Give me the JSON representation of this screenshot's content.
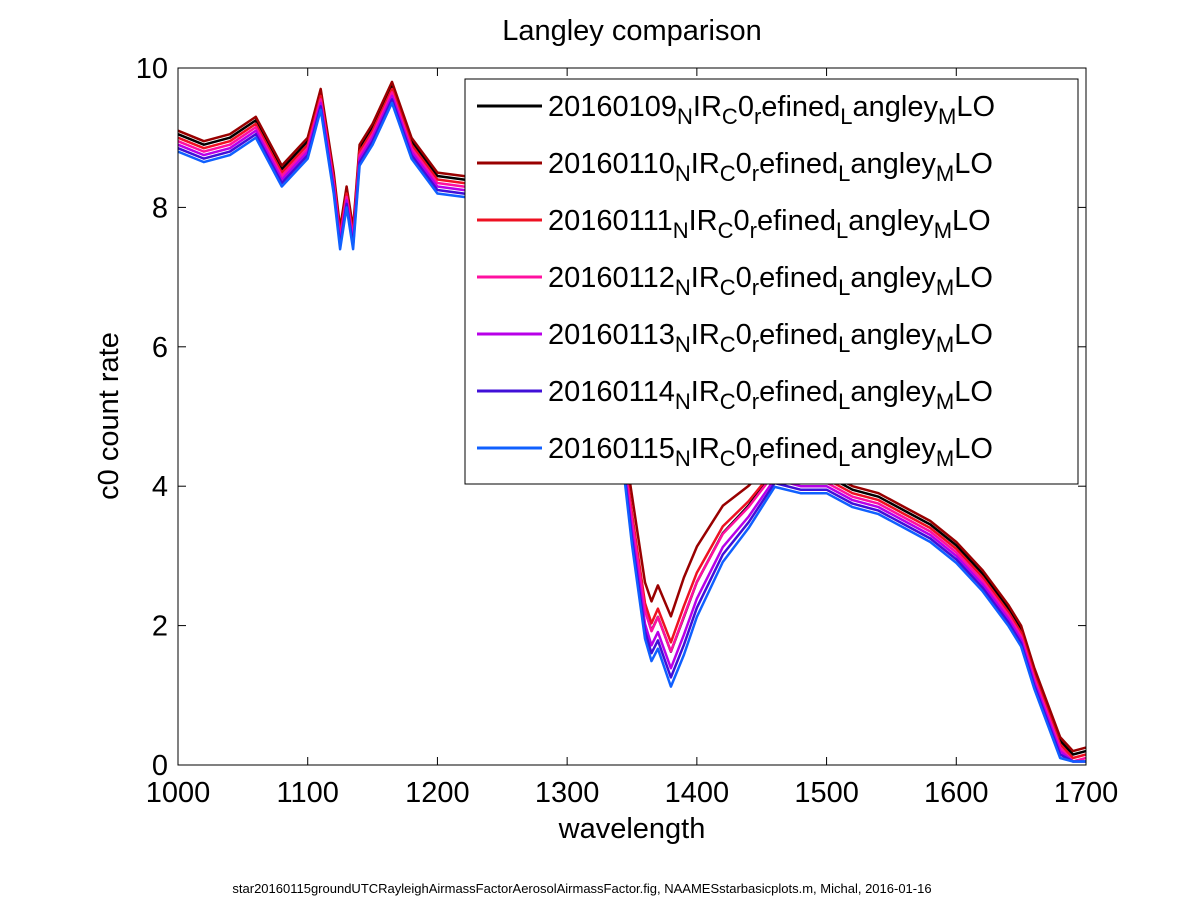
{
  "chart_data": {
    "type": "line",
    "title": "Langley comparison",
    "xlabel": "wavelength",
    "ylabel": "c0 count rate",
    "xlim": [
      1000,
      1700
    ],
    "ylim": [
      0,
      10
    ],
    "xticks": [
      1000,
      1100,
      1200,
      1300,
      1400,
      1500,
      1600,
      1700
    ],
    "yticks": [
      0,
      2,
      4,
      6,
      8,
      10
    ],
    "x_tick_labels": [
      "1000",
      "1100",
      "1200",
      "1300",
      "1400",
      "1500",
      "1600",
      "1700"
    ],
    "y_tick_labels": [
      "0",
      "2",
      "4",
      "6",
      "8",
      "10"
    ],
    "grid": false,
    "legend_position": "top-right",
    "x": [
      1000,
      1020,
      1040,
      1060,
      1080,
      1100,
      1110,
      1120,
      1125,
      1130,
      1135,
      1140,
      1150,
      1165,
      1180,
      1200,
      1220,
      1240,
      1260,
      1280,
      1300,
      1320,
      1340,
      1350,
      1360,
      1365,
      1370,
      1380,
      1390,
      1400,
      1420,
      1440,
      1460,
      1480,
      1500,
      1520,
      1540,
      1560,
      1580,
      1600,
      1620,
      1640,
      1650,
      1660,
      1670,
      1680,
      1690,
      1700
    ],
    "base": [
      9.0,
      8.85,
      8.95,
      9.2,
      8.5,
      8.9,
      9.6,
      8.4,
      7.6,
      8.2,
      7.6,
      8.8,
      9.1,
      9.7,
      8.9,
      8.4,
      8.35,
      8.3,
      8.2,
      7.9,
      7.5,
      6.8,
      5.0,
      3.5,
      2.2,
      1.9,
      2.1,
      1.6,
      2.1,
      2.6,
      3.3,
      3.7,
      4.2,
      4.1,
      4.1,
      3.9,
      3.8,
      3.6,
      3.4,
      3.1,
      2.7,
      2.2,
      1.9,
      1.3,
      0.8,
      0.3,
      0.1,
      0.15
    ],
    "series": [
      {
        "name": "20160109",
        "color": "#000000",
        "offset": 0.05,
        "wfactor": 1.0
      },
      {
        "name": "20160110",
        "color": "#990000",
        "offset": 0.1,
        "wfactor": 0.55
      },
      {
        "name": "20160111",
        "color": "#ee1122",
        "offset": 0.0,
        "wfactor": 0.85
      },
      {
        "name": "20160112",
        "color": "#ff10a0",
        "offset": -0.05,
        "wfactor": 0.95
      },
      {
        "name": "20160113",
        "color": "#b800e8",
        "offset": -0.1,
        "wfactor": 1.15
      },
      {
        "name": "20160114",
        "color": "#4010d8",
        "offset": -0.15,
        "wfactor": 1.25
      },
      {
        "name": "20160115",
        "color": "#1060ff",
        "offset": -0.2,
        "wfactor": 1.35
      }
    ],
    "legend_parts": {
      "main_a": "NIR",
      "sub_a": "C",
      "mid_a": "0",
      "sub_b": "r",
      "mid_b": "efined",
      "sub_c": "L",
      "mid_c": "angley",
      "sub_d": "M",
      "tail": "LO"
    }
  },
  "footer": "star20160115groundUTCRayleighAirmassFactorAerosolAirmassFactor.fig, NAAMESstarbasicplots.m, Michal, 2016-01-16"
}
